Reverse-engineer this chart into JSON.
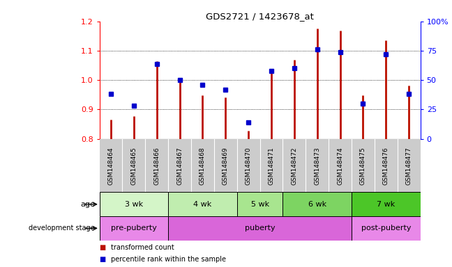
{
  "title": "GDS2721 / 1423678_at",
  "samples": [
    "GSM148464",
    "GSM148465",
    "GSM148466",
    "GSM148467",
    "GSM148468",
    "GSM148469",
    "GSM148470",
    "GSM148471",
    "GSM148472",
    "GSM148473",
    "GSM148474",
    "GSM148475",
    "GSM148476",
    "GSM148477"
  ],
  "transformed_count": [
    0.865,
    0.878,
    1.065,
    1.005,
    0.948,
    0.942,
    0.828,
    1.038,
    1.068,
    1.175,
    1.168,
    0.948,
    1.135,
    0.982
  ],
  "percentile_rank": [
    38,
    28,
    64,
    50,
    46,
    42,
    14,
    58,
    60,
    76,
    74,
    30,
    72,
    38
  ],
  "ylim_left": [
    0.8,
    1.2
  ],
  "ylim_right": [
    0,
    100
  ],
  "yticks_left": [
    0.8,
    0.9,
    1.0,
    1.1,
    1.2
  ],
  "yticks_right": [
    0,
    25,
    50,
    75,
    100
  ],
  "age_groups": [
    {
      "label": "3 wk",
      "start": 0,
      "end": 3
    },
    {
      "label": "4 wk",
      "start": 3,
      "end": 6
    },
    {
      "label": "5 wk",
      "start": 6,
      "end": 8
    },
    {
      "label": "6 wk",
      "start": 8,
      "end": 11
    },
    {
      "label": "7 wk",
      "start": 11,
      "end": 14
    }
  ],
  "age_colors": [
    "#d4f5c8",
    "#c0edaf",
    "#a8e58f",
    "#7dd462",
    "#4cc628"
  ],
  "dev_groups": [
    {
      "label": "pre-puberty",
      "start": 0,
      "end": 3
    },
    {
      "label": "puberty",
      "start": 3,
      "end": 11
    },
    {
      "label": "post-puberty",
      "start": 11,
      "end": 14
    }
  ],
  "dev_colors": [
    "#e888e8",
    "#d966d9",
    "#e888e8"
  ],
  "bar_color": "#bb1100",
  "dot_color": "#0000cc",
  "base_value": 0.8,
  "xtick_bg": "#cccccc",
  "legend_square_red": "#bb1100",
  "legend_square_blue": "#0000cc"
}
